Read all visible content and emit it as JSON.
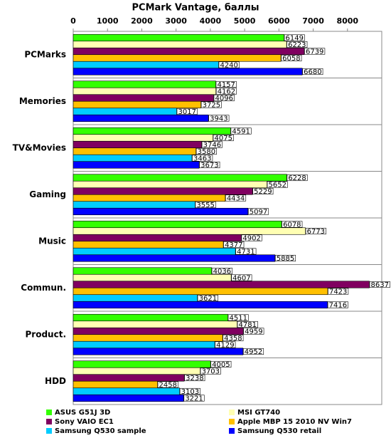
{
  "chart_data": {
    "type": "barh",
    "title": "PCMark Vantage, баллы",
    "categories": [
      "PCMarks",
      "Memories",
      "TV&Movies",
      "Gaming",
      "Music",
      "Commun.",
      "Product.",
      "HDD"
    ],
    "series": [
      {
        "name": "ASUS G51J 3D",
        "color": "#33ff00",
        "values": [
          6149,
          4157,
          4591,
          6228,
          6078,
          4036,
          4511,
          4005
        ]
      },
      {
        "name": "MSI GT740",
        "color": "#ffffb3",
        "values": [
          6223,
          4162,
          4075,
          5652,
          6773,
          4607,
          4781,
          3703
        ]
      },
      {
        "name": "Sony VAIO EC1",
        "color": "#800060",
        "values": [
          6739,
          4096,
          3746,
          5229,
          4902,
          8637,
          4959,
          3238
        ]
      },
      {
        "name": "Apple MBP 15 2010 NV Win7",
        "color": "#ffc000",
        "values": [
          6058,
          3725,
          3580,
          4434,
          4377,
          7423,
          4358,
          2458
        ]
      },
      {
        "name": "Samsung Q530 sample",
        "color": "#00ccff",
        "values": [
          4240,
          3017,
          3463,
          3555,
          4731,
          3621,
          4129,
          3103
        ]
      },
      {
        "name": "Samsung Q530 retail",
        "color": "#0000ff",
        "values": [
          6680,
          3943,
          3673,
          5097,
          5885,
          7416,
          4952,
          3221
        ]
      }
    ],
    "xlim": [
      0,
      9000
    ],
    "xticks": [
      0,
      1000,
      2000,
      3000,
      4000,
      5000,
      6000,
      7000,
      8000
    ],
    "grid": false
  }
}
